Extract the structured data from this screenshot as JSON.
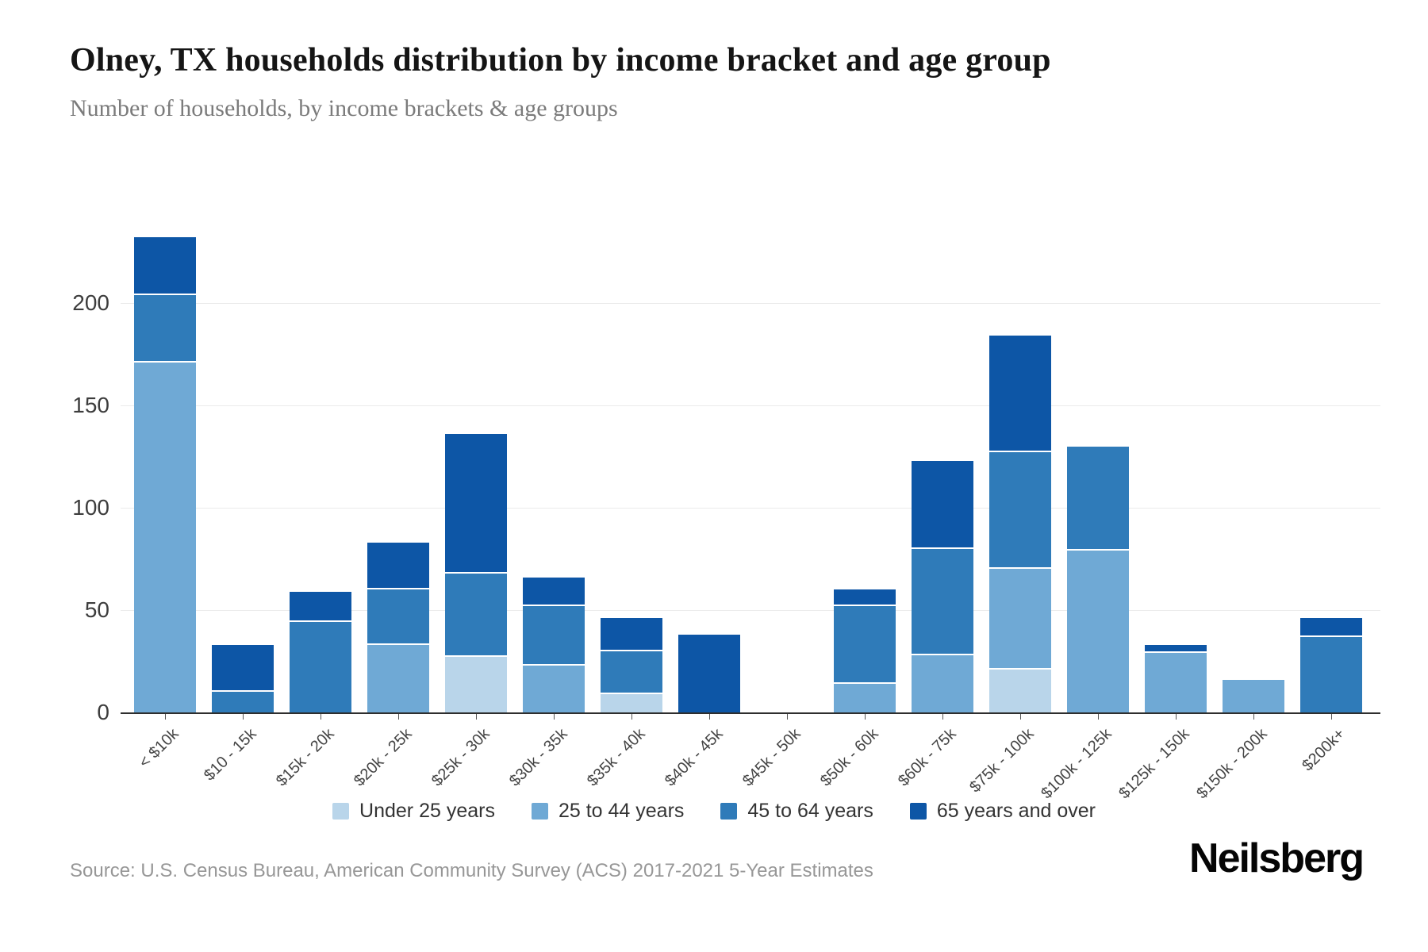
{
  "header": {
    "title": "Olney, TX households distribution by income bracket and age group",
    "subtitle": "Number of households, by income brackets & age groups"
  },
  "chart_data": {
    "type": "bar",
    "stacked": true,
    "title": "Olney, TX households distribution by income bracket and age group",
    "subtitle": "Number of households, by income brackets & age groups",
    "categories": [
      "< $10k",
      "$10 - 15k",
      "$15k - 20k",
      "$20k - 25k",
      "$25k - 30k",
      "$30k - 35k",
      "$35k - 40k",
      "$40k - 45k",
      "$45k - 50k",
      "$50k - 60k",
      "$60k - 75k",
      "$75k - 100k",
      "$100k - 125k",
      "$125k - 150k",
      "$150k - 200k",
      "$200k+"
    ],
    "series": [
      {
        "name": "Under 25 years",
        "color": "#b9d5ea",
        "values": [
          0,
          0,
          0,
          0,
          27,
          0,
          9,
          0,
          0,
          0,
          0,
          21,
          0,
          0,
          0,
          0
        ]
      },
      {
        "name": "25 to 44 years",
        "color": "#6fa9d5",
        "values": [
          171,
          0,
          0,
          33,
          0,
          23,
          0,
          0,
          0,
          14,
          28,
          49,
          79,
          29,
          16,
          0
        ]
      },
      {
        "name": "45 to 64 years",
        "color": "#2f7bb9",
        "values": [
          33,
          10,
          44,
          27,
          41,
          29,
          21,
          0,
          0,
          38,
          52,
          57,
          51,
          0,
          0,
          37
        ]
      },
      {
        "name": "65 years and over",
        "color": "#0d56a6",
        "values": [
          28,
          23,
          15,
          23,
          68,
          14,
          16,
          38,
          0,
          8,
          43,
          57,
          0,
          4,
          0,
          9
        ]
      }
    ],
    "xlabel": "",
    "ylabel": "",
    "yticks": [
      0,
      50,
      100,
      150,
      200
    ],
    "ylim": [
      0,
      255
    ],
    "grid": true,
    "legend_position": "bottom"
  },
  "footer": {
    "source": "Source: U.S. Census Bureau, American Community Survey (ACS) 2017-2021 5-Year Estimates",
    "logo": "Neilsberg"
  }
}
